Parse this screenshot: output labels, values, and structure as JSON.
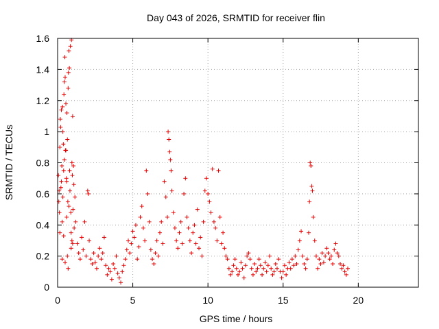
{
  "chart_data": {
    "type": "scatter",
    "title": "Day 043 of 2026, SRMTID for receiver flin",
    "xlabel": "GPS time / hours",
    "ylabel": "SRMTID / TECUs",
    "xlim": [
      0,
      24
    ],
    "ylim": [
      0,
      1.6
    ],
    "xticks": [
      0,
      5,
      10,
      15,
      20
    ],
    "xtick_labels": [
      "0",
      "5",
      "10",
      "15",
      "20"
    ],
    "yticks": [
      0,
      0.2,
      0.4,
      0.6,
      0.8,
      1,
      1.2,
      1.4,
      1.6
    ],
    "ytick_labels": [
      "0",
      "0.2",
      "0.4",
      "0.6",
      "0.8",
      "1",
      "1.2",
      "1.4",
      "1.6"
    ],
    "grid": true,
    "marker": "+",
    "marker_color": "#e00000",
    "series": [
      {
        "name": "SRMTID",
        "points": [
          [
            0.05,
            0.72
          ],
          [
            0.08,
            0.55
          ],
          [
            0.1,
            0.62
          ],
          [
            0.12,
            0.48
          ],
          [
            0.15,
            0.9
          ],
          [
            0.18,
            1.08
          ],
          [
            0.2,
            1.03
          ],
          [
            0.22,
            0.64
          ],
          [
            0.25,
            1.14
          ],
          [
            0.28,
            0.78
          ],
          [
            0.3,
            0.42
          ],
          [
            0.33,
            1.16
          ],
          [
            0.35,
            0.58
          ],
          [
            0.38,
            0.92
          ],
          [
            0.4,
            0.33
          ],
          [
            0.42,
            1.24
          ],
          [
            0.45,
            1.32
          ],
          [
            0.48,
            1.48
          ],
          [
            0.5,
            1.35
          ],
          [
            0.52,
            0.88
          ],
          [
            0.55,
            1.18
          ],
          [
            0.58,
            0.7
          ],
          [
            0.6,
            0.45
          ],
          [
            0.62,
            1.12
          ],
          [
            0.65,
            0.2
          ],
          [
            0.68,
            0.55
          ],
          [
            0.7,
            1.28
          ],
          [
            0.72,
            1.38
          ],
          [
            0.75,
            1.52
          ],
          [
            0.78,
            1.41
          ],
          [
            0.8,
            0.75
          ],
          [
            0.82,
            0.62
          ],
          [
            0.85,
            1.55
          ],
          [
            0.88,
            0.48
          ],
          [
            0.9,
            0.35
          ],
          [
            0.92,
            1.59
          ],
          [
            0.95,
            0.8
          ],
          [
            0.98,
            0.72
          ],
          [
            1.0,
            1.1
          ],
          [
            1.02,
            0.5
          ],
          [
            1.05,
            0.78
          ],
          [
            1.08,
            0.66
          ],
          [
            1.1,
            0.38
          ],
          [
            1.15,
            0.58
          ],
          [
            1.2,
            0.42
          ],
          [
            0.15,
            0.35
          ],
          [
            0.3,
            0.18
          ],
          [
            0.5,
            0.16
          ],
          [
            0.7,
            0.12
          ],
          [
            0.9,
            0.25
          ],
          [
            0.25,
            0.68
          ],
          [
            0.45,
            0.82
          ],
          [
            0.65,
            0.95
          ],
          [
            0.35,
            1.0
          ],
          [
            0.55,
            0.88
          ],
          [
            0.75,
            0.52
          ],
          [
            0.95,
            0.3
          ],
          [
            1.0,
            0.28
          ],
          [
            0.6,
            0.68
          ],
          [
            0.4,
            0.75
          ],
          [
            1.3,
            0.28
          ],
          [
            1.4,
            0.22
          ],
          [
            1.5,
            0.18
          ],
          [
            1.6,
            0.32
          ],
          [
            1.7,
            0.24
          ],
          [
            1.8,
            0.42
          ],
          [
            1.9,
            0.2
          ],
          [
            2.0,
            0.62
          ],
          [
            2.05,
            0.6
          ],
          [
            2.1,
            0.3
          ],
          [
            2.2,
            0.18
          ],
          [
            2.3,
            0.15
          ],
          [
            2.4,
            0.22
          ],
          [
            2.5,
            0.16
          ],
          [
            2.6,
            0.12
          ],
          [
            2.7,
            0.2
          ],
          [
            2.8,
            0.25
          ],
          [
            2.9,
            0.18
          ],
          [
            3.0,
            0.22
          ],
          [
            3.1,
            0.32
          ],
          [
            3.2,
            0.14
          ],
          [
            3.3,
            0.08
          ],
          [
            3.4,
            0.12
          ],
          [
            3.5,
            0.1
          ],
          [
            3.6,
            0.05
          ],
          [
            3.7,
            0.15
          ],
          [
            3.8,
            0.12
          ],
          [
            3.9,
            0.2
          ],
          [
            4.0,
            0.09
          ],
          [
            4.1,
            0.06
          ],
          [
            4.2,
            0.03
          ],
          [
            4.3,
            0.1
          ],
          [
            4.4,
            0.14
          ],
          [
            4.5,
            0.18
          ],
          [
            4.6,
            0.24
          ],
          [
            4.7,
            0.3
          ],
          [
            4.8,
            0.22
          ],
          [
            4.9,
            0.28
          ],
          [
            5.0,
            0.36
          ],
          [
            5.1,
            0.32
          ],
          [
            5.2,
            0.4
          ],
          [
            5.3,
            0.18
          ],
          [
            5.4,
            0.26
          ],
          [
            5.5,
            0.45
          ],
          [
            5.6,
            0.52
          ],
          [
            5.7,
            0.38
          ],
          [
            5.8,
            0.3
          ],
          [
            5.9,
            0.75
          ],
          [
            6.0,
            0.6
          ],
          [
            6.1,
            0.42
          ],
          [
            6.2,
            0.24
          ],
          [
            6.3,
            0.18
          ],
          [
            6.4,
            0.15
          ],
          [
            6.5,
            0.22
          ],
          [
            6.6,
            0.3
          ],
          [
            6.7,
            0.2
          ],
          [
            6.8,
            0.35
          ],
          [
            6.9,
            0.42
          ],
          [
            7.0,
            0.28
          ],
          [
            7.1,
            0.68
          ],
          [
            7.2,
            0.58
          ],
          [
            7.3,
            0.45
          ],
          [
            7.35,
            1.0
          ],
          [
            7.4,
            0.95
          ],
          [
            7.45,
            0.87
          ],
          [
            7.5,
            0.82
          ],
          [
            7.55,
            0.75
          ],
          [
            7.6,
            0.62
          ],
          [
            7.7,
            0.48
          ],
          [
            7.8,
            0.38
          ],
          [
            7.9,
            0.3
          ],
          [
            8.0,
            0.25
          ],
          [
            8.1,
            0.35
          ],
          [
            8.2,
            0.42
          ],
          [
            8.3,
            0.28
          ],
          [
            8.4,
            0.6
          ],
          [
            8.5,
            0.7
          ],
          [
            8.6,
            0.45
          ],
          [
            8.7,
            0.38
          ],
          [
            8.8,
            0.3
          ],
          [
            8.9,
            0.22
          ],
          [
            9.0,
            0.35
          ],
          [
            9.1,
            0.4
          ],
          [
            9.2,
            0.28
          ],
          [
            9.3,
            0.5
          ],
          [
            9.4,
            0.25
          ],
          [
            9.5,
            0.32
          ],
          [
            9.6,
            0.2
          ],
          [
            9.7,
            0.42
          ],
          [
            9.8,
            0.62
          ],
          [
            9.9,
            0.7
          ],
          [
            10.0,
            0.6
          ],
          [
            10.1,
            0.55
          ],
          [
            10.2,
            0.48
          ],
          [
            10.3,
            0.76
          ],
          [
            10.4,
            0.42
          ],
          [
            10.5,
            0.38
          ],
          [
            10.6,
            0.3
          ],
          [
            10.7,
            0.75
          ],
          [
            10.8,
            0.45
          ],
          [
            10.9,
            0.28
          ],
          [
            11.0,
            0.35
          ],
          [
            11.1,
            0.25
          ],
          [
            11.2,
            0.2
          ],
          [
            11.3,
            0.18
          ],
          [
            11.4,
            0.12
          ],
          [
            11.5,
            0.08
          ],
          [
            11.6,
            0.1
          ],
          [
            11.7,
            0.14
          ],
          [
            11.8,
            0.18
          ],
          [
            11.9,
            0.12
          ],
          [
            12.0,
            0.08
          ],
          [
            12.1,
            0.1
          ],
          [
            12.2,
            0.16
          ],
          [
            12.3,
            0.12
          ],
          [
            12.4,
            0.06
          ],
          [
            12.5,
            0.14
          ],
          [
            12.6,
            0.2
          ],
          [
            12.7,
            0.22
          ],
          [
            12.8,
            0.18
          ],
          [
            12.9,
            0.12
          ],
          [
            13.0,
            0.08
          ],
          [
            13.1,
            0.15
          ],
          [
            13.2,
            0.1
          ],
          [
            13.3,
            0.12
          ],
          [
            13.4,
            0.18
          ],
          [
            13.5,
            0.14
          ],
          [
            13.6,
            0.08
          ],
          [
            13.7,
            0.12
          ],
          [
            13.8,
            0.16
          ],
          [
            13.9,
            0.1
          ],
          [
            14.0,
            0.14
          ],
          [
            14.1,
            0.2
          ],
          [
            14.2,
            0.12
          ],
          [
            14.3,
            0.08
          ],
          [
            14.4,
            0.1
          ],
          [
            14.5,
            0.15
          ],
          [
            14.6,
            0.12
          ],
          [
            14.7,
            0.18
          ],
          [
            14.8,
            0.1
          ],
          [
            14.9,
            0.06
          ],
          [
            15.0,
            0.1
          ],
          [
            15.1,
            0.14
          ],
          [
            15.2,
            0.08
          ],
          [
            15.3,
            0.12
          ],
          [
            15.4,
            0.16
          ],
          [
            15.5,
            0.12
          ],
          [
            15.6,
            0.18
          ],
          [
            15.7,
            0.14
          ],
          [
            15.8,
            0.2
          ],
          [
            15.9,
            0.15
          ],
          [
            16.0,
            0.24
          ],
          [
            16.1,
            0.3
          ],
          [
            16.2,
            0.36
          ],
          [
            16.3,
            0.2
          ],
          [
            16.4,
            0.15
          ],
          [
            16.5,
            0.12
          ],
          [
            16.6,
            0.18
          ],
          [
            16.7,
            0.35
          ],
          [
            16.75,
            0.55
          ],
          [
            16.8,
            0.8
          ],
          [
            16.85,
            0.78
          ],
          [
            16.9,
            0.65
          ],
          [
            16.95,
            0.62
          ],
          [
            17.0,
            0.45
          ],
          [
            17.1,
            0.3
          ],
          [
            17.2,
            0.2
          ],
          [
            17.3,
            0.12
          ],
          [
            17.4,
            0.18
          ],
          [
            17.5,
            0.15
          ],
          [
            17.6,
            0.22
          ],
          [
            17.7,
            0.16
          ],
          [
            17.8,
            0.2
          ],
          [
            17.9,
            0.25
          ],
          [
            18.0,
            0.22
          ],
          [
            18.1,
            0.18
          ],
          [
            18.2,
            0.2
          ],
          [
            18.3,
            0.15
          ],
          [
            18.4,
            0.24
          ],
          [
            18.5,
            0.28
          ],
          [
            18.6,
            0.22
          ],
          [
            18.7,
            0.2
          ],
          [
            18.8,
            0.15
          ],
          [
            18.9,
            0.12
          ],
          [
            19.0,
            0.14
          ],
          [
            19.1,
            0.1
          ],
          [
            19.2,
            0.08
          ],
          [
            19.3,
            0.12
          ]
        ]
      }
    ]
  }
}
